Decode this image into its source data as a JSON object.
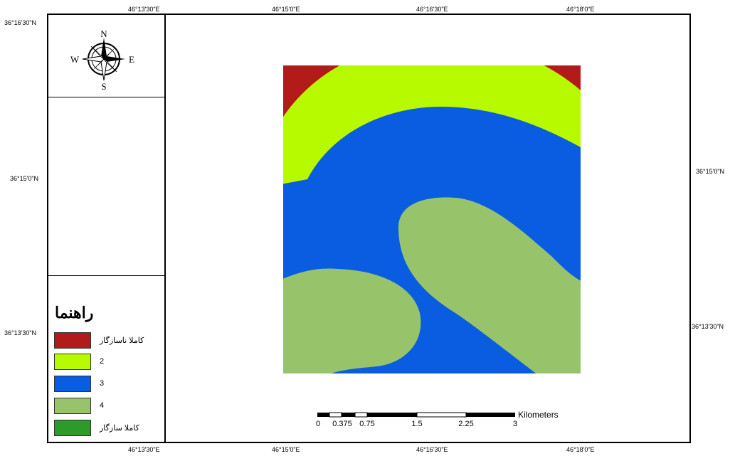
{
  "map": {
    "top_ticks": [
      "46°13'30\"E",
      "46°15'0\"E",
      "46°16'30\"E",
      "46°18'0\"E"
    ],
    "bottom_ticks": [
      "46°13'30\"E",
      "46°15'0\"E",
      "46°16'30\"E",
      "46°18'0\"E"
    ],
    "left_ticks": [
      "36°16'30\"N",
      "36°15'0\"N",
      "36°13'30\"N"
    ],
    "right_ticks": [
      "36°15'0\"N",
      "36°13'30\"N"
    ],
    "compass": {
      "n": "N",
      "s": "S",
      "e": "E",
      "w": "W"
    },
    "legend": {
      "title": "راهنما",
      "items": [
        {
          "label": "کاملا ناسازگار",
          "color": "#b31b1b"
        },
        {
          "label": "2",
          "color": "#b7fa00"
        },
        {
          "label": "3",
          "color": "#0a5ce0"
        },
        {
          "label": "4",
          "color": "#97c46b"
        },
        {
          "label": "کاملا سازگار",
          "color": "#2e9a2a"
        }
      ]
    },
    "scalebar": {
      "labels": [
        "0",
        "0.375",
        "0.75",
        "1.5",
        "2.25",
        "3"
      ],
      "unit": "Kilometers"
    },
    "zone_colors": {
      "zone1": "#b31b1b",
      "zone2": "#b7fa00",
      "zone3": "#0a5ce0",
      "zone4": "#97c46b"
    }
  }
}
